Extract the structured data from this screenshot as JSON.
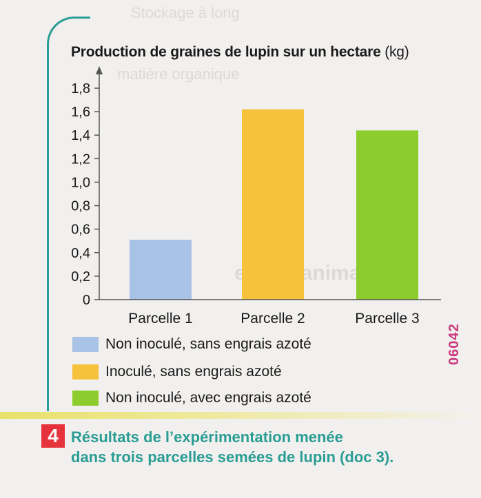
{
  "chart_data": {
    "type": "bar",
    "title": "Production de graines de lupin sur un hectare",
    "title_unit": "(kg)",
    "categories": [
      "Parcelle 1",
      "Parcelle 2",
      "Parcelle 3"
    ],
    "values": [
      0.51,
      1.62,
      1.44
    ],
    "yticks": [
      "0",
      "0,2",
      "0,4",
      "0,6",
      "0,8",
      "1,0",
      "1,2",
      "1,4",
      "1,6",
      "1,8"
    ],
    "ylim": [
      0,
      1.8
    ],
    "grid": false,
    "bar_colors": [
      "#a9c3e6",
      "#f7c23b",
      "#8ccc2c"
    ],
    "legend": [
      {
        "label": "Non inoculé, sans engrais azoté",
        "color": "#a9c3e6"
      },
      {
        "label": "Inoculé, sans engrais azoté",
        "color": "#f7c23b"
      },
      {
        "label": "Non inoculé, avec engrais azoté",
        "color": "#8ccc2c"
      }
    ]
  },
  "figure": {
    "number": "4",
    "caption_line1": "Résultats de l’expérimentation menée",
    "caption_line2": "dans trois parcelles semées de lupin (doc 3)."
  },
  "side_code": "06042"
}
